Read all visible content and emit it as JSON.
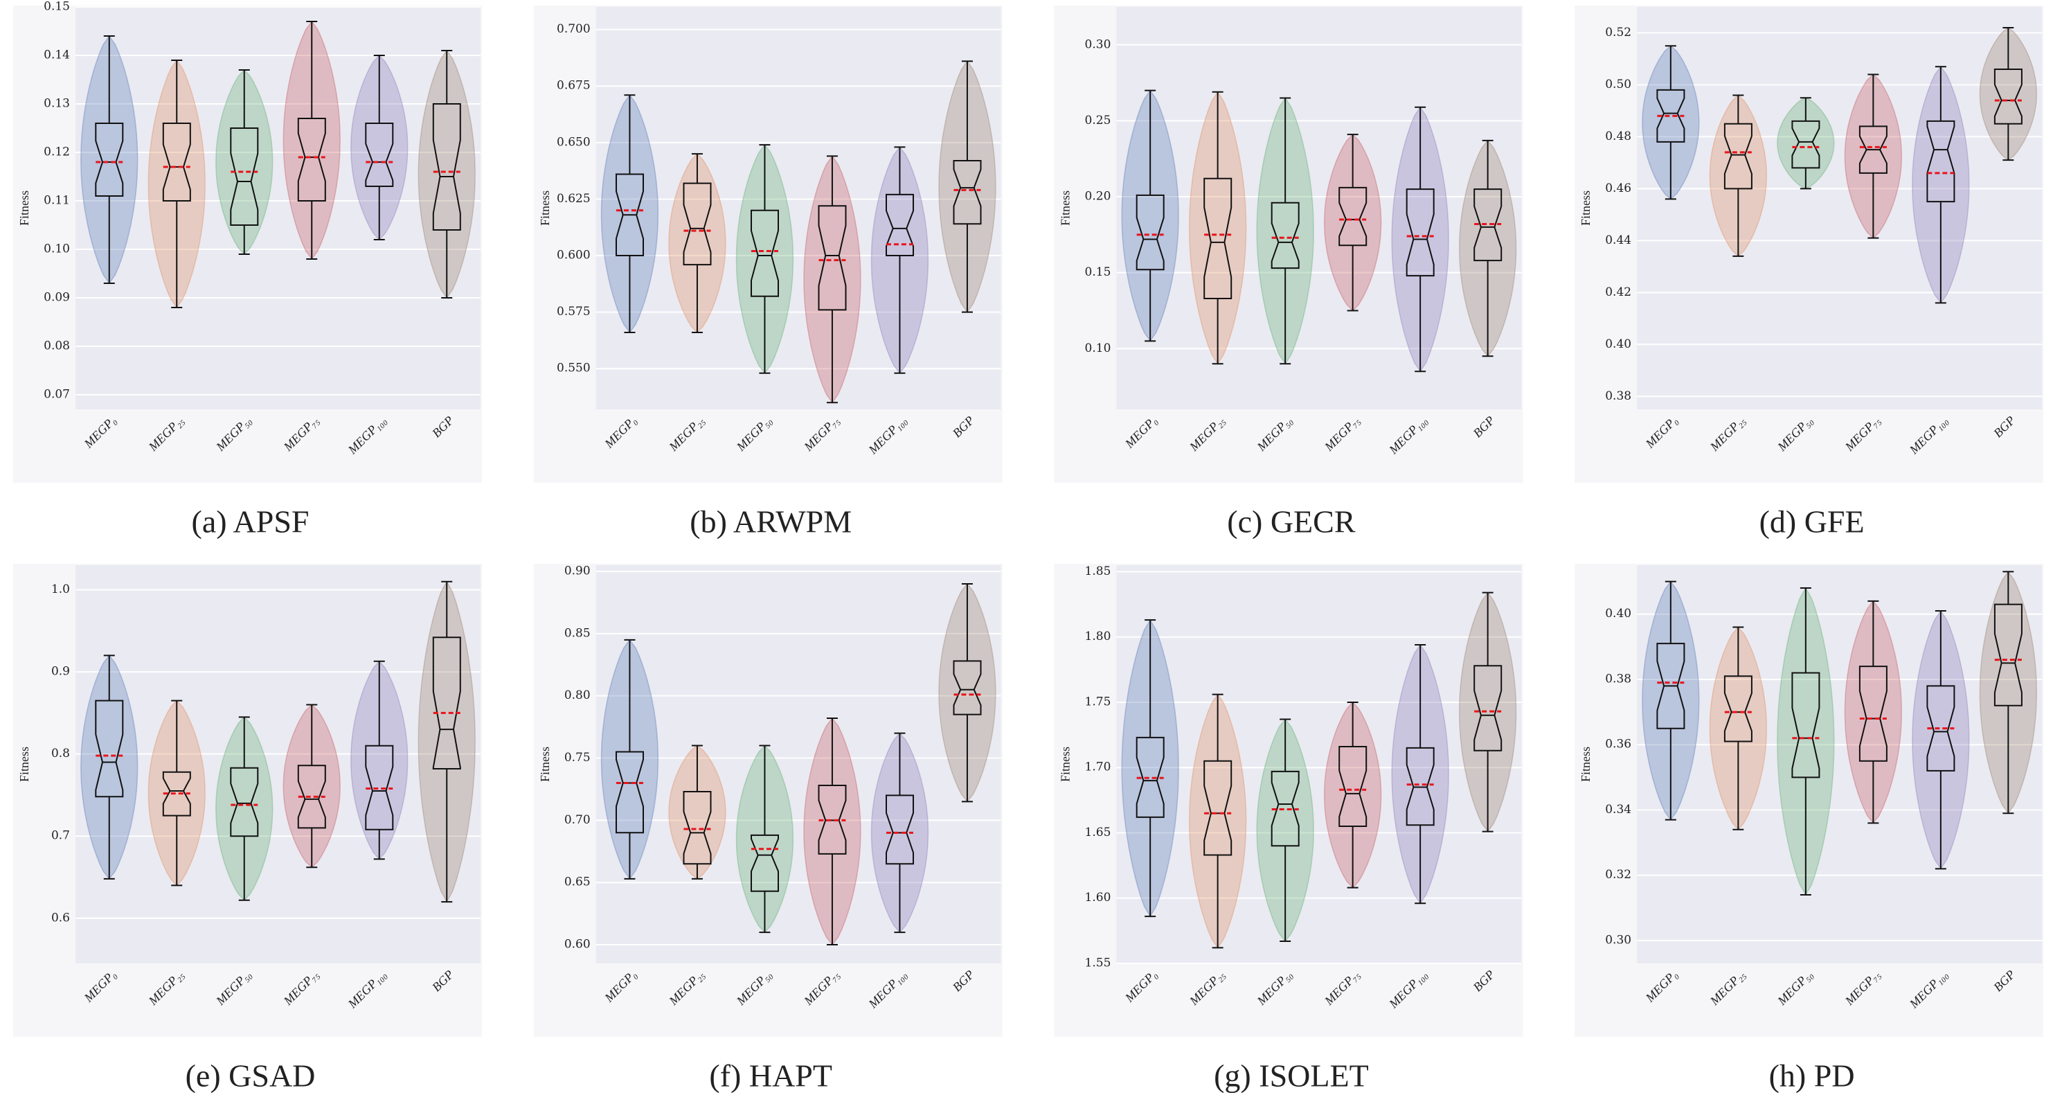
{
  "chart_data": [
    {
      "type": "box",
      "title": "(a) APSF",
      "ylabel": "Fitness",
      "categories": [
        "MEGP₀",
        "MEGP₂₅",
        "MEGP₅₀",
        "MEGP₇₅",
        "MEGP₁₀₀",
        "BGP"
      ],
      "colors": [
        "#4c72b0",
        "#dd8452",
        "#55a868",
        "#c44e52",
        "#8172b3",
        "#937860"
      ],
      "ylim": [
        0.067,
        0.15
      ],
      "yticks": [
        0.07,
        0.08,
        0.09,
        {
          "value": 0.1,
          "label": "0.10"
        },
        0.11,
        0.12,
        0.13,
        0.14,
        0.15
      ],
      "boxes": [
        {
          "low": 0.093,
          "q1": 0.111,
          "median": 0.118,
          "q3": 0.126,
          "high": 0.144,
          "mean": 0.118
        },
        {
          "low": 0.088,
          "q1": 0.11,
          "median": 0.117,
          "q3": 0.126,
          "high": 0.139,
          "mean": 0.117
        },
        {
          "low": 0.099,
          "q1": 0.105,
          "median": 0.114,
          "q3": 0.125,
          "high": 0.137,
          "mean": 0.116
        },
        {
          "low": 0.098,
          "q1": 0.11,
          "median": 0.119,
          "q3": 0.127,
          "high": 0.147,
          "mean": 0.119
        },
        {
          "low": 0.102,
          "q1": 0.113,
          "median": 0.118,
          "q3": 0.126,
          "high": 0.14,
          "mean": 0.118
        },
        {
          "low": 0.09,
          "q1": 0.104,
          "median": 0.115,
          "q3": 0.13,
          "high": 0.141,
          "mean": 0.116
        }
      ]
    },
    {
      "type": "box",
      "title": "(b) ARWPM",
      "ylabel": "Fitness",
      "categories": [
        "MEGP₀",
        "MEGP₂₅",
        "MEGP₅₀",
        "MEGP₇₅",
        "MEGP₁₀₀",
        "BGP"
      ],
      "colors": [
        "#4c72b0",
        "#dd8452",
        "#55a868",
        "#c44e52",
        "#8172b3",
        "#937860"
      ],
      "ylim": [
        0.532,
        0.71
      ],
      "yticks": [
        {
          "value": 0.55,
          "label": "0.550"
        },
        0.575,
        {
          "value": 0.6,
          "label": "0.600"
        },
        0.625,
        {
          "value": 0.65,
          "label": "0.650"
        },
        0.675,
        {
          "value": 0.7,
          "label": "0.700"
        }
      ],
      "boxes": [
        {
          "low": 0.566,
          "q1": 0.6,
          "median": 0.618,
          "q3": 0.636,
          "high": 0.671,
          "mean": 0.62
        },
        {
          "low": 0.566,
          "q1": 0.596,
          "median": 0.612,
          "q3": 0.632,
          "high": 0.645,
          "mean": 0.611
        },
        {
          "low": 0.548,
          "q1": 0.582,
          "median": 0.6,
          "q3": 0.62,
          "high": 0.649,
          "mean": 0.602
        },
        {
          "low": 0.535,
          "q1": 0.576,
          "median": 0.6,
          "q3": 0.622,
          "high": 0.644,
          "mean": 0.598
        },
        {
          "low": 0.548,
          "q1": 0.6,
          "median": 0.612,
          "q3": 0.627,
          "high": 0.648,
          "mean": 0.605
        },
        {
          "low": 0.575,
          "q1": 0.614,
          "median": 0.63,
          "q3": 0.642,
          "high": 0.686,
          "mean": 0.629
        }
      ]
    },
    {
      "type": "box",
      "title": "(c) GECR",
      "ylabel": "Fitness",
      "categories": [
        "MEGP₀",
        "MEGP₂₅",
        "MEGP₅₀",
        "MEGP₇₅",
        "MEGP₁₀₀",
        "BGP"
      ],
      "colors": [
        "#4c72b0",
        "#dd8452",
        "#55a868",
        "#c44e52",
        "#8172b3",
        "#937860"
      ],
      "ylim": [
        0.06,
        0.325
      ],
      "yticks": [
        {
          "value": 0.1,
          "label": "0.10"
        },
        0.15,
        {
          "value": 0.2,
          "label": "0.20"
        },
        0.25,
        {
          "value": 0.3,
          "label": "0.30"
        }
      ],
      "boxes": [
        {
          "low": 0.105,
          "q1": 0.152,
          "median": 0.172,
          "q3": 0.201,
          "high": 0.27,
          "mean": 0.175
        },
        {
          "low": 0.09,
          "q1": 0.133,
          "median": 0.17,
          "q3": 0.212,
          "high": 0.269,
          "mean": 0.175
        },
        {
          "low": 0.09,
          "q1": 0.153,
          "median": 0.17,
          "q3": 0.196,
          "high": 0.265,
          "mean": 0.173
        },
        {
          "low": 0.125,
          "q1": 0.168,
          "median": 0.185,
          "q3": 0.206,
          "high": 0.241,
          "mean": 0.185
        },
        {
          "low": 0.085,
          "q1": 0.148,
          "median": 0.172,
          "q3": 0.205,
          "high": 0.259,
          "mean": 0.174
        },
        {
          "low": 0.095,
          "q1": 0.158,
          "median": 0.18,
          "q3": 0.205,
          "high": 0.237,
          "mean": 0.182
        }
      ]
    },
    {
      "type": "box",
      "title": "(d) GFE",
      "ylabel": "Fitness",
      "categories": [
        "MEGP₀",
        "MEGP₂₅",
        "MEGP₅₀",
        "MEGP₇₅",
        "MEGP₁₀₀",
        "BGP"
      ],
      "colors": [
        "#4c72b0",
        "#dd8452",
        "#55a868",
        "#c44e52",
        "#8172b3",
        "#937860"
      ],
      "ylim": [
        0.375,
        0.53
      ],
      "yticks": [
        0.38,
        {
          "value": 0.4,
          "label": "0.40"
        },
        0.42,
        0.44,
        0.46,
        0.48,
        {
          "value": 0.5,
          "label": "0.50"
        },
        0.52
      ],
      "boxes": [
        {
          "low": 0.456,
          "q1": 0.478,
          "median": 0.489,
          "q3": 0.498,
          "high": 0.515,
          "mean": 0.488
        },
        {
          "low": 0.434,
          "q1": 0.46,
          "median": 0.473,
          "q3": 0.485,
          "high": 0.496,
          "mean": 0.474
        },
        {
          "low": 0.46,
          "q1": 0.468,
          "median": 0.478,
          "q3": 0.486,
          "high": 0.495,
          "mean": 0.476
        },
        {
          "low": 0.441,
          "q1": 0.466,
          "median": 0.475,
          "q3": 0.484,
          "high": 0.504,
          "mean": 0.476
        },
        {
          "low": 0.416,
          "q1": 0.455,
          "median": 0.475,
          "q3": 0.486,
          "high": 0.507,
          "mean": 0.466
        },
        {
          "low": 0.471,
          "q1": 0.485,
          "median": 0.494,
          "q3": 0.506,
          "high": 0.522,
          "mean": 0.494
        }
      ]
    },
    {
      "type": "box",
      "title": "(e) GSAD",
      "ylabel": "Fitness",
      "categories": [
        "MEGP₀",
        "MEGP₂₅",
        "MEGP₅₀",
        "MEGP₇₅",
        "MEGP₁₀₀",
        "BGP"
      ],
      "colors": [
        "#4c72b0",
        "#dd8452",
        "#55a868",
        "#c44e52",
        "#8172b3",
        "#937860"
      ],
      "ylim": [
        0.545,
        1.03
      ],
      "yticks": [
        0.6,
        0.7,
        0.8,
        0.9,
        {
          "value": 1,
          "label": "1.0"
        }
      ],
      "boxes": [
        {
          "low": 0.648,
          "q1": 0.748,
          "median": 0.79,
          "q3": 0.865,
          "high": 0.92,
          "mean": 0.798
        },
        {
          "low": 0.64,
          "q1": 0.725,
          "median": 0.755,
          "q3": 0.778,
          "high": 0.865,
          "mean": 0.752
        },
        {
          "low": 0.622,
          "q1": 0.7,
          "median": 0.74,
          "q3": 0.783,
          "high": 0.845,
          "mean": 0.738
        },
        {
          "low": 0.662,
          "q1": 0.71,
          "median": 0.745,
          "q3": 0.786,
          "high": 0.86,
          "mean": 0.748
        },
        {
          "low": 0.672,
          "q1": 0.708,
          "median": 0.755,
          "q3": 0.81,
          "high": 0.913,
          "mean": 0.758
        },
        {
          "low": 0.62,
          "q1": 0.782,
          "median": 0.83,
          "q3": 0.942,
          "high": 1.01,
          "mean": 0.85
        }
      ]
    },
    {
      "type": "box",
      "title": "(f) HAPT",
      "ylabel": "Fitness",
      "categories": [
        "MEGP₀",
        "MEGP₂₅",
        "MEGP₅₀",
        "MEGP₇₅",
        "MEGP₁₀₀",
        "BGP"
      ],
      "colors": [
        "#4c72b0",
        "#dd8452",
        "#55a868",
        "#c44e52",
        "#8172b3",
        "#937860"
      ],
      "ylim": [
        0.585,
        0.905
      ],
      "yticks": [
        {
          "value": 0.6,
          "label": "0.60"
        },
        0.65,
        {
          "value": 0.7,
          "label": "0.70"
        },
        0.75,
        {
          "value": 0.8,
          "label": "0.80"
        },
        0.85,
        {
          "value": 0.9,
          "label": "0.90"
        }
      ],
      "boxes": [
        {
          "low": 0.653,
          "q1": 0.69,
          "median": 0.73,
          "q3": 0.755,
          "high": 0.845,
          "mean": 0.73
        },
        {
          "low": 0.653,
          "q1": 0.665,
          "median": 0.69,
          "q3": 0.723,
          "high": 0.76,
          "mean": 0.693
        },
        {
          "low": 0.61,
          "q1": 0.643,
          "median": 0.672,
          "q3": 0.688,
          "high": 0.76,
          "mean": 0.677
        },
        {
          "low": 0.6,
          "q1": 0.673,
          "median": 0.7,
          "q3": 0.728,
          "high": 0.782,
          "mean": 0.7
        },
        {
          "low": 0.61,
          "q1": 0.665,
          "median": 0.69,
          "q3": 0.72,
          "high": 0.77,
          "mean": 0.69
        },
        {
          "low": 0.715,
          "q1": 0.785,
          "median": 0.805,
          "q3": 0.828,
          "high": 0.89,
          "mean": 0.801
        }
      ]
    },
    {
      "type": "box",
      "title": "(g) ISOLET",
      "ylabel": "Fitness",
      "categories": [
        "MEGP₀",
        "MEGP₂₅",
        "MEGP₅₀",
        "MEGP₇₅",
        "MEGP₁₀₀",
        "BGP"
      ],
      "colors": [
        "#4c72b0",
        "#dd8452",
        "#55a868",
        "#c44e52",
        "#8172b3",
        "#937860"
      ],
      "ylim": [
        1.55,
        1.855
      ],
      "yticks": [
        1.55,
        {
          "value": 1.6,
          "label": "1.60"
        },
        1.65,
        {
          "value": 1.7,
          "label": "1.70"
        },
        1.75,
        {
          "value": 1.8,
          "label": "1.80"
        },
        1.85
      ],
      "boxes": [
        {
          "low": 1.586,
          "q1": 1.662,
          "median": 1.69,
          "q3": 1.723,
          "high": 1.813,
          "mean": 1.692
        },
        {
          "low": 1.562,
          "q1": 1.633,
          "median": 1.665,
          "q3": 1.705,
          "high": 1.756,
          "mean": 1.665
        },
        {
          "low": 1.567,
          "q1": 1.64,
          "median": 1.672,
          "q3": 1.697,
          "high": 1.737,
          "mean": 1.668
        },
        {
          "low": 1.608,
          "q1": 1.655,
          "median": 1.68,
          "q3": 1.716,
          "high": 1.75,
          "mean": 1.683
        },
        {
          "low": 1.596,
          "q1": 1.656,
          "median": 1.685,
          "q3": 1.715,
          "high": 1.794,
          "mean": 1.687
        },
        {
          "low": 1.651,
          "q1": 1.713,
          "median": 1.74,
          "q3": 1.778,
          "high": 1.834,
          "mean": 1.743
        }
      ]
    },
    {
      "type": "box",
      "title": "(h) PD",
      "ylabel": "Fitness",
      "categories": [
        "MEGP₀",
        "MEGP₂₅",
        "MEGP₅₀",
        "MEGP₇₅",
        "MEGP₁₀₀",
        "BGP"
      ],
      "colors": [
        "#4c72b0",
        "#dd8452",
        "#55a868",
        "#c44e52",
        "#8172b3",
        "#937860"
      ],
      "ylim": [
        0.293,
        0.415
      ],
      "yticks": [
        {
          "value": 0.3,
          "label": "0.30"
        },
        0.32,
        0.34,
        0.36,
        0.38,
        {
          "value": 0.4,
          "label": "0.40"
        }
      ],
      "boxes": [
        {
          "low": 0.337,
          "q1": 0.365,
          "median": 0.378,
          "q3": 0.391,
          "high": 0.41,
          "mean": 0.379
        },
        {
          "low": 0.334,
          "q1": 0.361,
          "median": 0.37,
          "q3": 0.381,
          "high": 0.396,
          "mean": 0.37
        },
        {
          "low": 0.314,
          "q1": 0.35,
          "median": 0.362,
          "q3": 0.382,
          "high": 0.408,
          "mean": 0.362
        },
        {
          "low": 0.336,
          "q1": 0.355,
          "median": 0.368,
          "q3": 0.384,
          "high": 0.404,
          "mean": 0.368
        },
        {
          "low": 0.322,
          "q1": 0.352,
          "median": 0.364,
          "q3": 0.378,
          "high": 0.401,
          "mean": 0.365
        },
        {
          "low": 0.339,
          "q1": 0.372,
          "median": 0.385,
          "q3": 0.403,
          "high": 0.413,
          "mean": 0.386
        }
      ]
    }
  ]
}
